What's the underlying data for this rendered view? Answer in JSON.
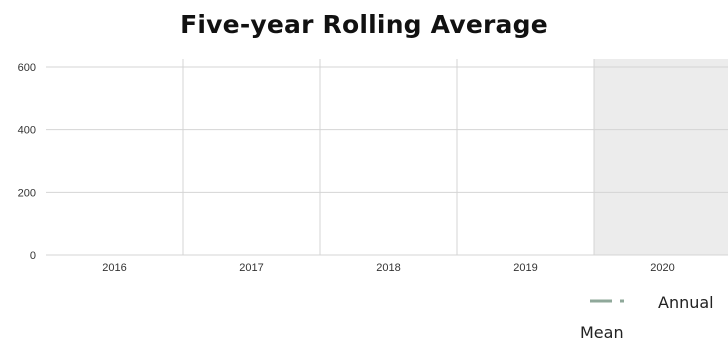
{
  "chart_data": {
    "type": "line",
    "title": "Five-year Rolling Average",
    "xlabel": "",
    "ylabel": "",
    "categories": [
      "2016",
      "2017",
      "2018",
      "2019",
      "2020"
    ],
    "ylim": [
      0,
      600
    ],
    "yticks": [
      0,
      200,
      400,
      600
    ],
    "grid": true,
    "shaded_category": "2020",
    "series": [
      {
        "name": "Annual Mean",
        "values": [
          null,
          null,
          null,
          null,
          null
        ],
        "color": "#8fa89a",
        "style": "dash-dot"
      }
    ],
    "legend": "bottom-right"
  },
  "colors": {
    "grid": "#d4d4d4",
    "shade": "#ececec",
    "axis_text": "#333333",
    "series": "#8fa89a"
  }
}
